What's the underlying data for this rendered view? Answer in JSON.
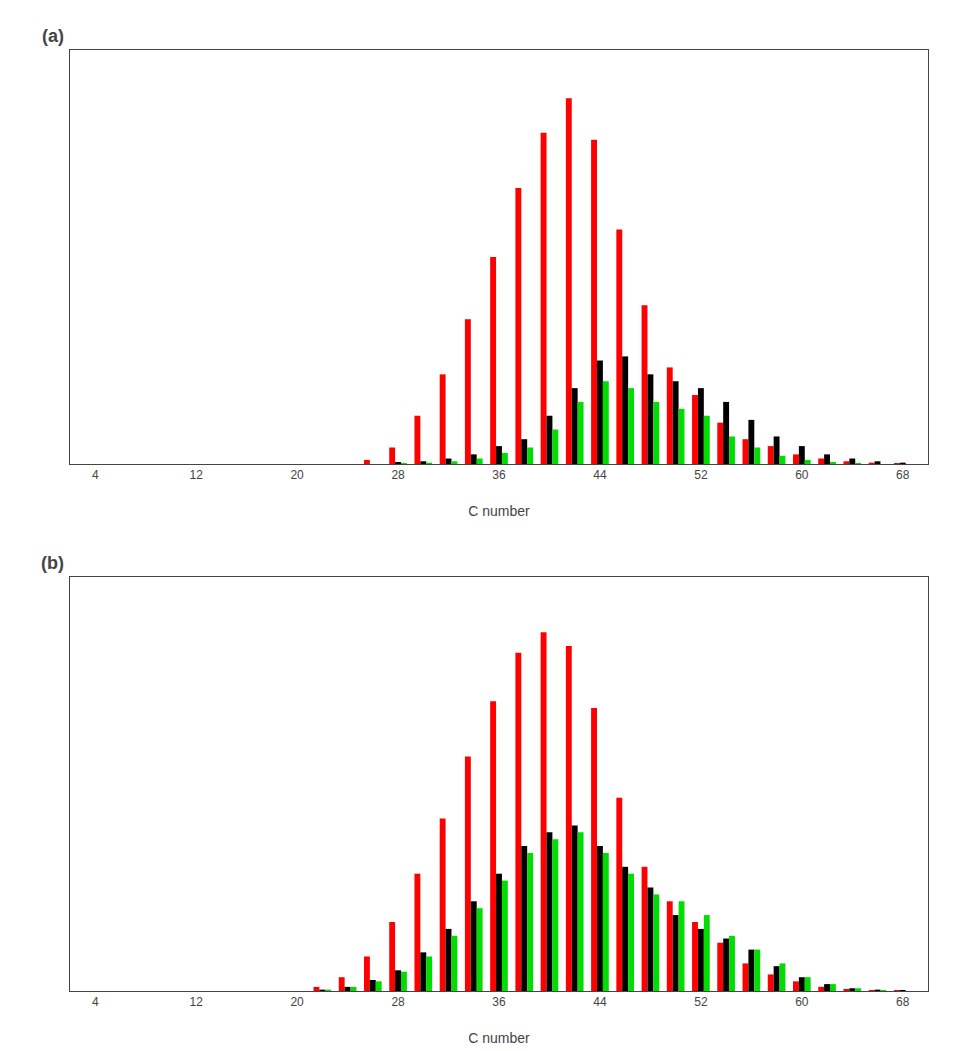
{
  "chart_data": [
    {
      "type": "bar",
      "title": "(a)",
      "x": [
        4,
        6,
        8,
        10,
        12,
        14,
        16,
        18,
        20,
        22,
        24,
        26,
        28,
        30,
        32,
        34,
        36,
        38,
        40,
        42,
        44,
        46,
        48,
        50,
        52,
        54,
        56,
        58,
        60,
        62,
        64,
        66,
        68
      ],
      "series": [
        {
          "color": "#ff0000",
          "values": [
            0,
            0,
            0,
            0,
            0,
            0,
            0,
            0,
            0,
            0,
            0,
            0.3,
            1.2,
            3.5,
            6.5,
            10.5,
            15.0,
            20.0,
            24.0,
            26.5,
            23.5,
            17.0,
            11.5,
            7.0,
            5.0,
            3.0,
            1.8,
            1.3,
            0.7,
            0.4,
            0.2,
            0.1,
            0.05
          ]
        },
        {
          "color": "#000000",
          "values": [
            0,
            0,
            0,
            0,
            0,
            0,
            0,
            0,
            0,
            0,
            0,
            0,
            0.15,
            0.2,
            0.4,
            0.7,
            1.3,
            1.8,
            3.5,
            5.5,
            7.5,
            7.8,
            6.5,
            6.0,
            5.5,
            4.5,
            3.2,
            2.0,
            1.3,
            0.7,
            0.4,
            0.2,
            0.1
          ]
        },
        {
          "color": "#00dd00",
          "values": [
            0,
            0,
            0,
            0,
            0,
            0,
            0,
            0,
            0,
            0,
            0,
            0,
            0.05,
            0.1,
            0.2,
            0.4,
            0.8,
            1.2,
            2.5,
            4.5,
            6.0,
            5.5,
            4.5,
            4.0,
            3.5,
            2.0,
            1.2,
            0.6,
            0.3,
            0.15,
            0.05,
            0,
            0
          ]
        }
      ],
      "xlabel": "C number",
      "xlim": [
        2,
        70
      ],
      "xticks": [
        4,
        12,
        20,
        28,
        36,
        44,
        52,
        60,
        68
      ],
      "ylim": [
        0,
        30
      ],
      "tick_labels": "x",
      "grid": false
    },
    {
      "type": "bar",
      "title": "(b)",
      "x": [
        4,
        6,
        8,
        10,
        12,
        14,
        16,
        18,
        20,
        22,
        24,
        26,
        28,
        30,
        32,
        34,
        36,
        38,
        40,
        42,
        44,
        46,
        48,
        50,
        52,
        54,
        56,
        58,
        60,
        62,
        64,
        66,
        68
      ],
      "series": [
        {
          "color": "#ff0000",
          "values": [
            0,
            0,
            0,
            0,
            0,
            0,
            0,
            0,
            0,
            0.3,
            1.0,
            2.5,
            5.0,
            8.5,
            12.5,
            17.0,
            21.0,
            24.5,
            26.0,
            25.0,
            20.5,
            14.0,
            9.0,
            6.5,
            5.0,
            3.5,
            2.0,
            1.2,
            0.7,
            0.3,
            0.15,
            0.05,
            0.02
          ]
        },
        {
          "color": "#000000",
          "values": [
            0,
            0,
            0,
            0,
            0,
            0,
            0,
            0,
            0,
            0.1,
            0.3,
            0.8,
            1.5,
            2.8,
            4.5,
            6.5,
            8.5,
            10.5,
            11.5,
            12.0,
            10.5,
            9.0,
            7.5,
            5.5,
            4.5,
            3.8,
            3.0,
            1.8,
            1.0,
            0.5,
            0.2,
            0.1,
            0.05
          ]
        },
        {
          "color": "#00dd00",
          "values": [
            0,
            0,
            0,
            0,
            0,
            0,
            0,
            0,
            0,
            0.1,
            0.3,
            0.7,
            1.4,
            2.5,
            4.0,
            6.0,
            8.0,
            10.0,
            11.0,
            11.5,
            10.0,
            8.5,
            7.0,
            6.5,
            5.5,
            4.0,
            3.0,
            2.0,
            1.0,
            0.5,
            0.2,
            0.05,
            0
          ]
        }
      ],
      "xlabel": "C number",
      "xlim": [
        2,
        70
      ],
      "xticks": [
        4,
        12,
        20,
        28,
        36,
        44,
        52,
        60,
        68
      ],
      "ylim": [
        0,
        30
      ],
      "tick_labels": "x",
      "grid": false
    }
  ]
}
